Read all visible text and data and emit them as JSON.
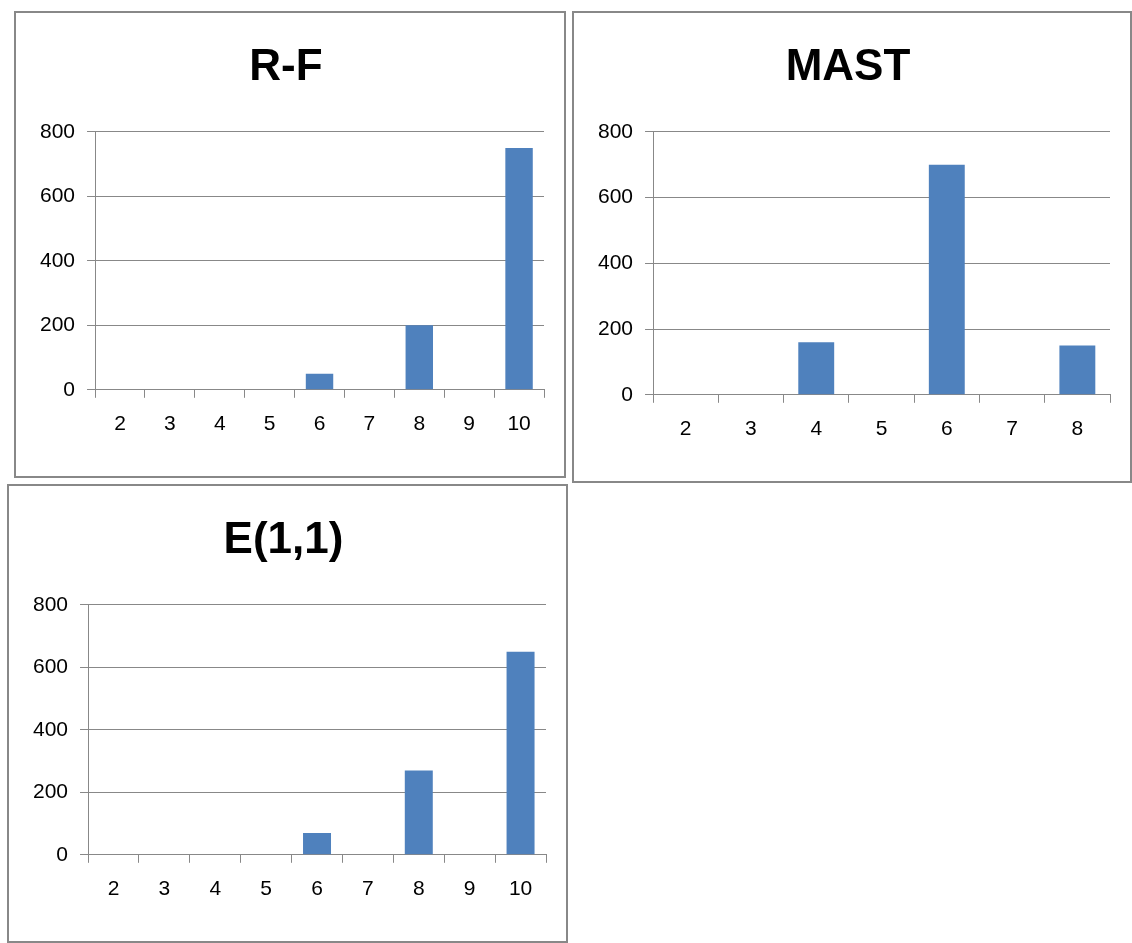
{
  "chart_data": [
    {
      "type": "bar",
      "title": "R-F",
      "categories": [
        "2",
        "3",
        "4",
        "5",
        "6",
        "7",
        "8",
        "9",
        "10"
      ],
      "values": [
        0,
        0,
        0,
        0,
        50,
        0,
        200,
        0,
        750
      ],
      "color": "#4f81bd",
      "ylim": [
        0,
        800
      ],
      "yticks": [
        0,
        200,
        400,
        600,
        800
      ],
      "grid": "y",
      "legend": false
    },
    {
      "type": "bar",
      "title": "MAST",
      "categories": [
        "2",
        "3",
        "4",
        "5",
        "6",
        "7",
        "8"
      ],
      "values": [
        0,
        0,
        160,
        0,
        700,
        0,
        150
      ],
      "color": "#4f81bd",
      "ylim": [
        0,
        800
      ],
      "yticks": [
        0,
        200,
        400,
        600,
        800
      ],
      "grid": "y",
      "legend": false
    },
    {
      "type": "bar",
      "title": "E(1,1)",
      "categories": [
        "2",
        "3",
        "4",
        "5",
        "6",
        "7",
        "8",
        "9",
        "10"
      ],
      "values": [
        0,
        0,
        0,
        0,
        70,
        0,
        270,
        0,
        650
      ],
      "color": "#4f81bd",
      "ylim": [
        0,
        800
      ],
      "yticks": [
        0,
        200,
        400,
        600,
        800
      ],
      "grid": "y",
      "legend": false
    }
  ]
}
